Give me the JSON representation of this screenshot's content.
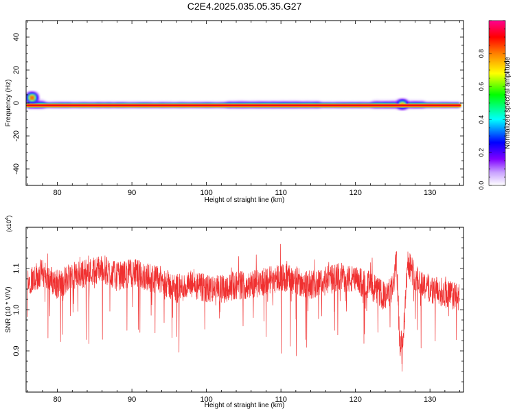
{
  "title": "C2E4.2025.035.05.35.G27",
  "chart_data": [
    {
      "type": "heatmap",
      "xlabel": "Height of straight line (km)",
      "ylabel": "Frequency (Hz)",
      "xlim": [
        75.8,
        134.5
      ],
      "ylim": [
        -50,
        50
      ],
      "x_ticks": [
        80,
        90,
        100,
        110,
        120,
        130
      ],
      "y_ticks": [
        -40,
        -20,
        0,
        20,
        40
      ],
      "colorbar": {
        "label": "Normalized spectral amplitude",
        "range": [
          0,
          1
        ],
        "ticks": [
          0.0,
          0.2,
          0.4,
          0.6,
          0.8
        ],
        "colors": [
          "#ffffff",
          "#8000ff",
          "#0000ff",
          "#00ffff",
          "#00ff00",
          "#ffff00",
          "#ff8000",
          "#ff0000",
          "#ff0090"
        ]
      },
      "ridge": {
        "frequency_hz": -1.5,
        "x_start": 76.0,
        "x_end": 134.0,
        "peak_color": "#e8001a"
      },
      "regions_wider": [
        {
          "x_from": 76.0,
          "x_to": 78.0,
          "note_level": 0.5
        },
        {
          "x_from": 103.0,
          "x_to": 115.0,
          "note_level": 0.35
        },
        {
          "x_from": 122.5,
          "x_to": 129.0,
          "note_level": 0.4
        }
      ]
    },
    {
      "type": "line",
      "xlabel": "Height of straight line (km)",
      "ylabel": "SNR (10 * V/V)",
      "y_exponent_label": "(x10",
      "y_exponent_power": "4",
      "y_exponent_close": ")",
      "xlim": [
        75.8,
        134.5
      ],
      "ylim": [
        0.8,
        1.2
      ],
      "x_ticks": [
        80,
        90,
        100,
        110,
        120,
        130
      ],
      "y_ticks": [
        0.9,
        1.0,
        1.1
      ],
      "series_color": "#f03030",
      "series": [
        {
          "x": [
            76,
            78,
            80,
            82,
            84,
            86,
            88,
            90,
            92,
            94,
            96,
            98,
            100,
            102,
            104,
            106,
            108,
            110,
            112,
            114,
            116,
            118,
            120,
            122,
            124,
            125,
            125.5,
            126,
            126.5,
            127,
            128,
            130,
            132,
            134
          ],
          "values": [
            1.07,
            1.09,
            1.06,
            1.08,
            1.09,
            1.1,
            1.08,
            1.09,
            1.08,
            1.07,
            1.05,
            1.06,
            1.05,
            1.05,
            1.06,
            1.06,
            1.07,
            1.08,
            1.07,
            1.06,
            1.07,
            1.08,
            1.07,
            1.06,
            1.03,
            1.05,
            1.12,
            0.9,
            0.96,
            1.12,
            1.08,
            1.05,
            1.04,
            1.03
          ]
        }
      ]
    }
  ]
}
